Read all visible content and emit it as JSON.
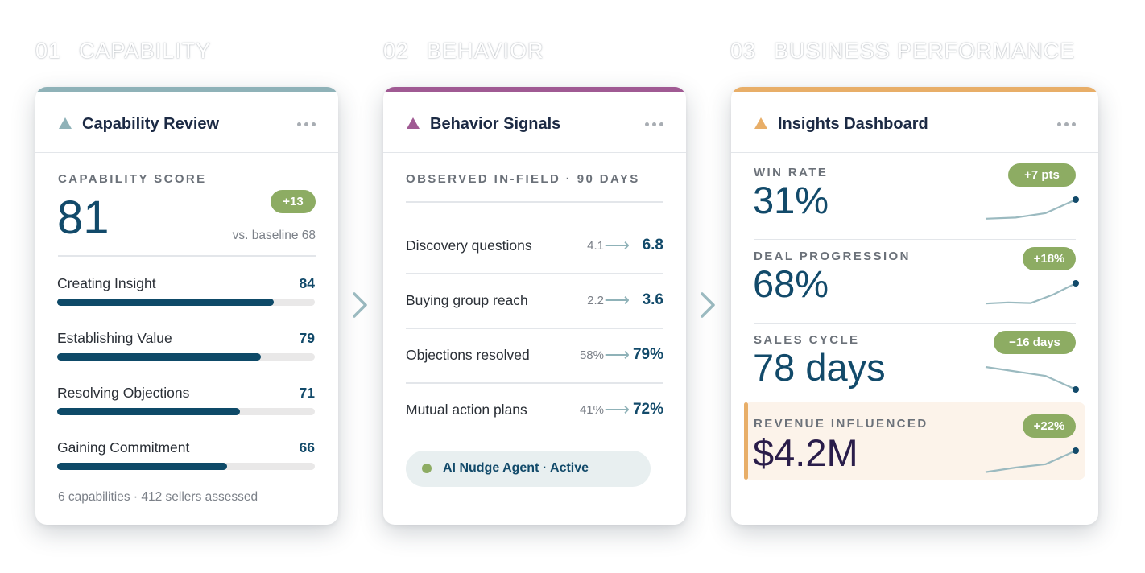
{
  "colors": {
    "capability_accent": "#8fb2b8",
    "behavior_accent": "#a05a93",
    "business_accent": "#e8ae68",
    "primary": "#124a6a",
    "positive": "#8dac63"
  },
  "steps": [
    {
      "num": "01",
      "title": "CAPABILITY"
    },
    {
      "num": "02",
      "title": "BEHAVIOR"
    },
    {
      "num": "03",
      "title": "BUSINESS PERFORMANCE"
    }
  ],
  "capability": {
    "title": "Capability Review",
    "score_label": "CAPABILITY SCORE",
    "score": "81",
    "delta": "+13",
    "baseline": "vs. baseline 68",
    "items": [
      {
        "label": "Creating Insight",
        "value": "84",
        "pct": 84
      },
      {
        "label": "Establishing Value",
        "value": "79",
        "pct": 79
      },
      {
        "label": "Resolving Objections",
        "value": "71",
        "pct": 71
      },
      {
        "label": "Gaining Commitment",
        "value": "66",
        "pct": 66
      }
    ],
    "footer": "6 capabilities · 412 sellers assessed"
  },
  "behavior": {
    "title": "Behavior Signals",
    "section_label": "OBSERVED IN-FIELD · 90 DAYS",
    "signals": [
      {
        "label": "Discovery questions",
        "before": "4.1",
        "after": "6.8"
      },
      {
        "label": "Buying group reach",
        "before": "2.2",
        "after": "3.6"
      },
      {
        "label": "Objections resolved",
        "before": "58%",
        "after": "79%"
      },
      {
        "label": "Mutual action plans",
        "before": "41%",
        "after": "72%"
      }
    ],
    "agent_status": "AI Nudge Agent · Active"
  },
  "business": {
    "title": "Insights Dashboard",
    "kpis": [
      {
        "label": "WIN RATE",
        "value": "31%",
        "delta": "+7 pts",
        "trend": [
          0.15,
          0.2,
          0.4,
          1.0
        ]
      },
      {
        "label": "DEAL PROGRESSION",
        "value": "68%",
        "delta": "+18%",
        "trend": [
          0.1,
          0.15,
          0.12,
          0.5,
          1.0
        ]
      },
      {
        "label": "SALES CYCLE",
        "value": "78 days",
        "delta": "−16 days",
        "trend": [
          1.0,
          0.8,
          0.6,
          0.0
        ]
      },
      {
        "label": "REVENUE INFLUENCED",
        "value": "$4.2M",
        "delta": "+22%",
        "trend": [
          0.05,
          0.25,
          0.4,
          1.0
        ]
      }
    ]
  }
}
